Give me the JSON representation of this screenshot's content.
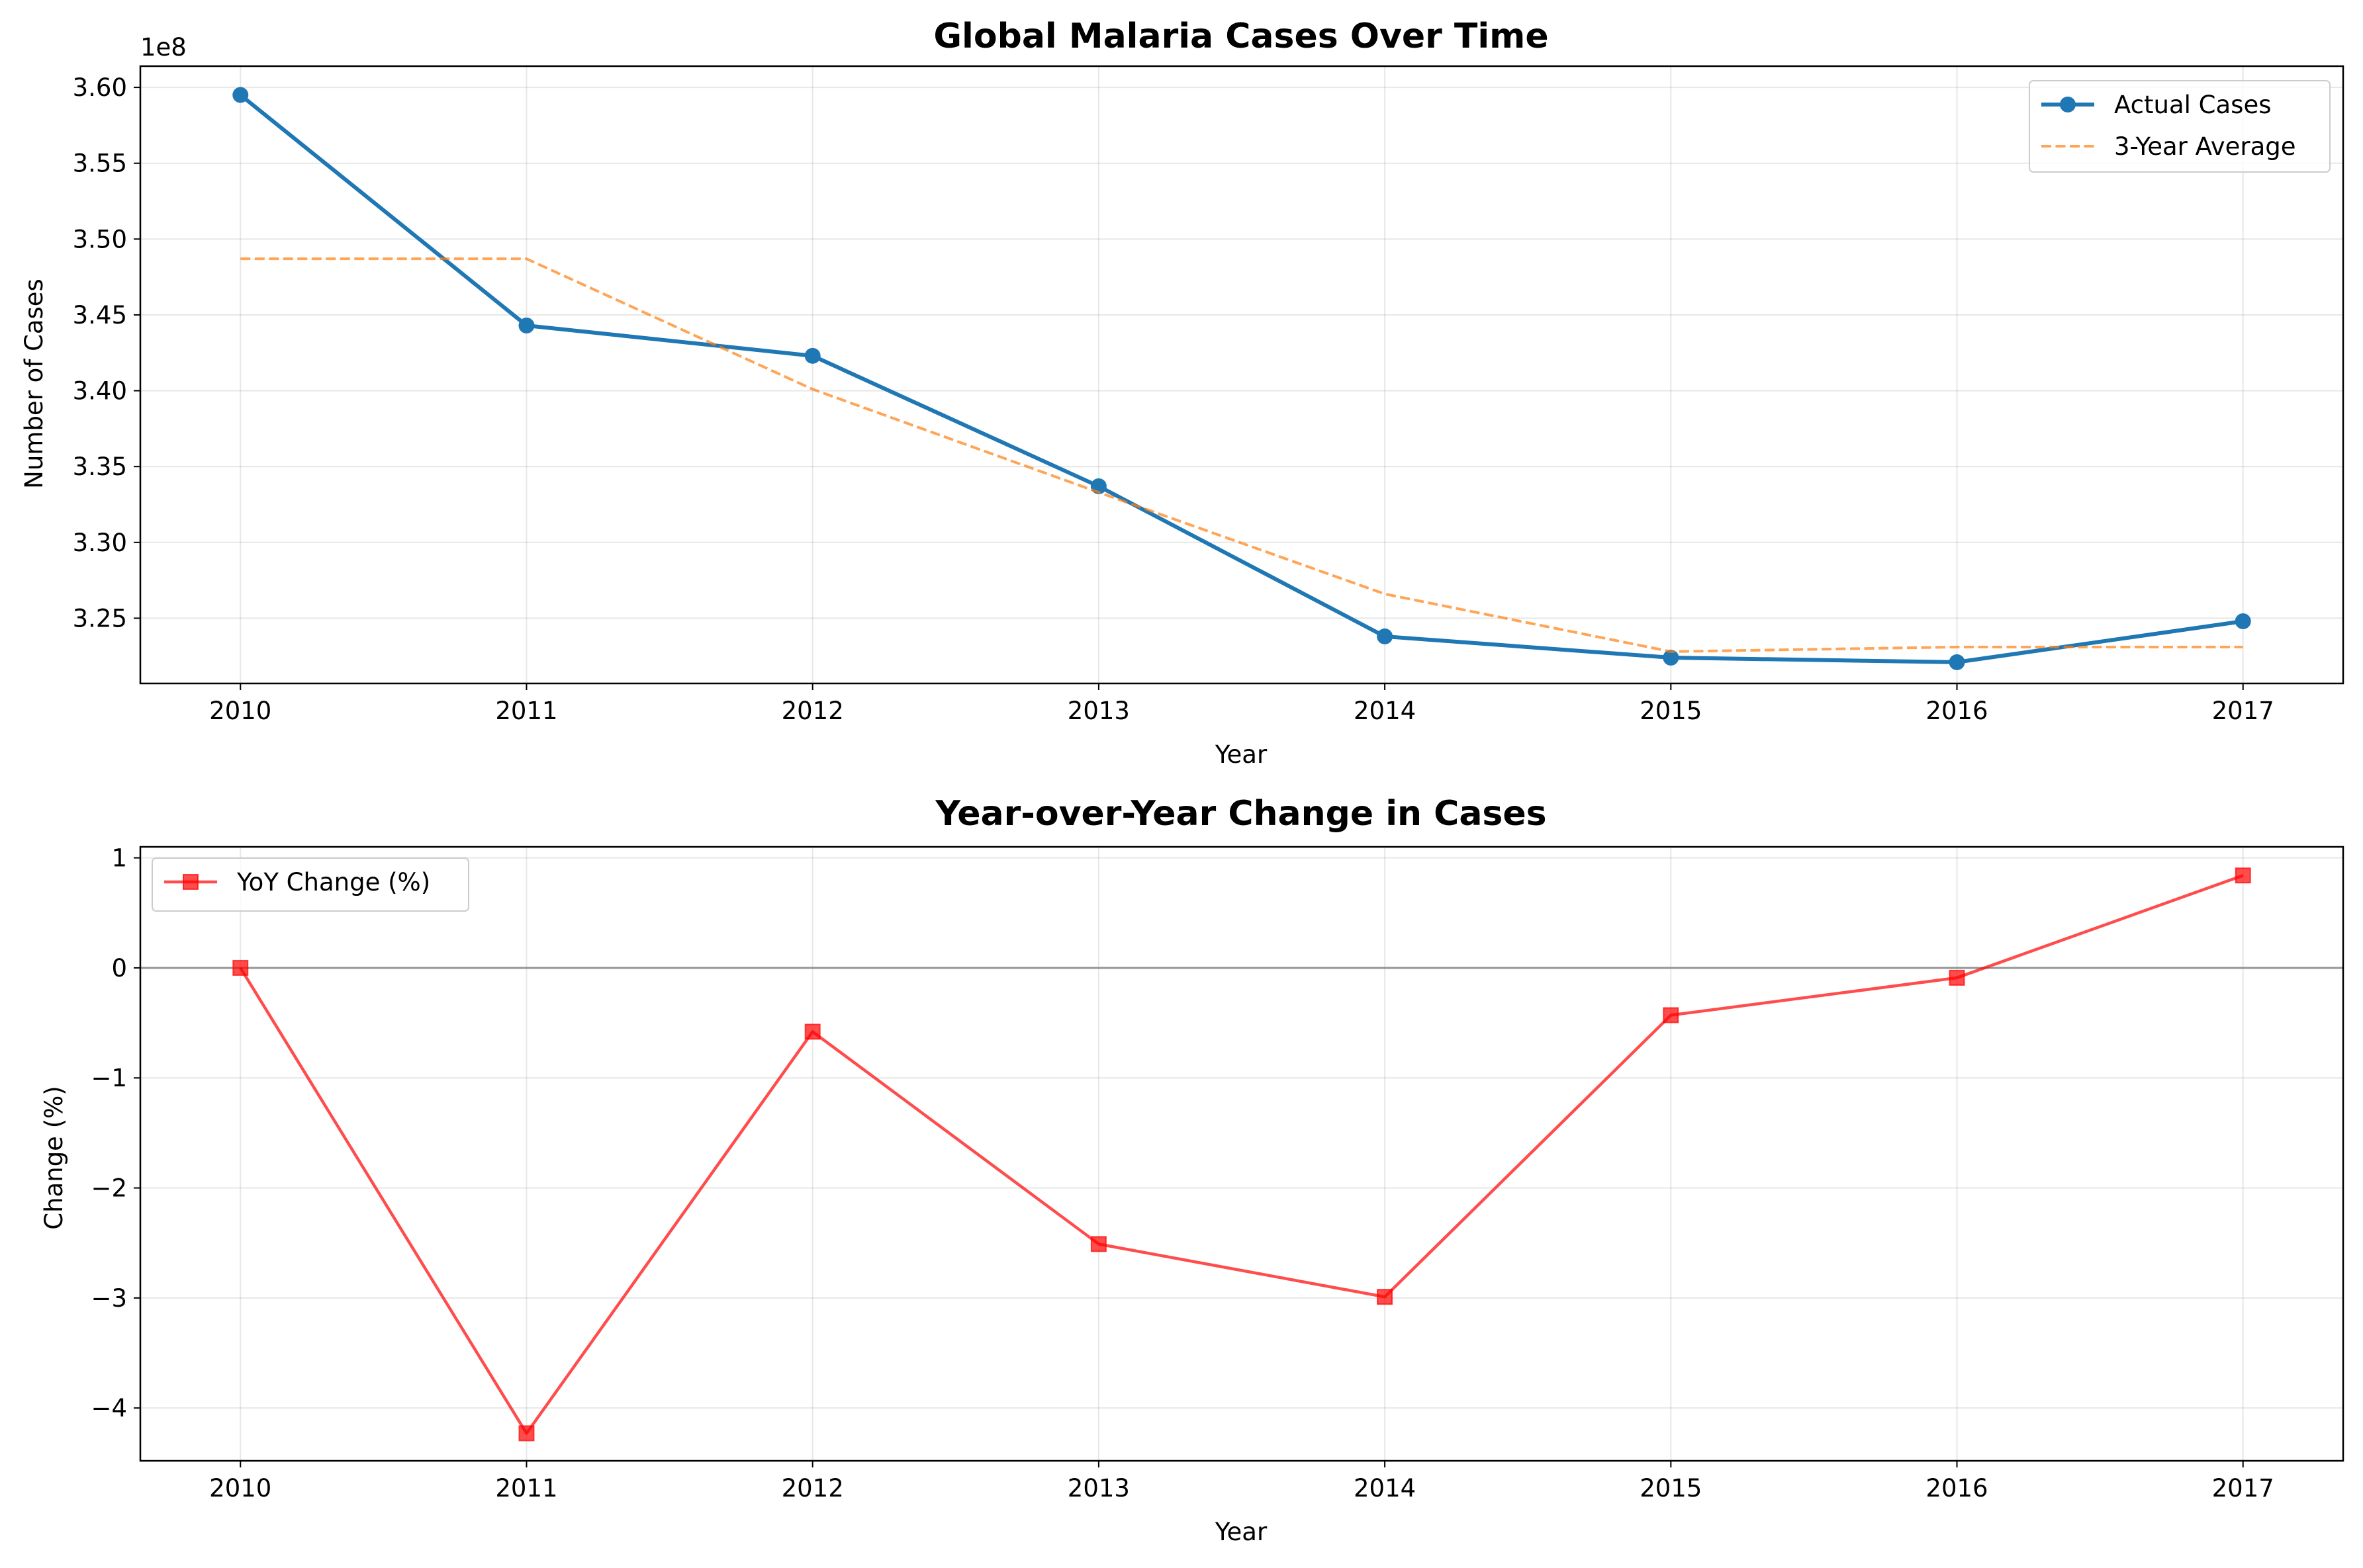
{
  "chart_data": [
    {
      "type": "line",
      "title": "Global Malaria Cases Over Time",
      "xlabel": "Year",
      "ylabel": "Number of Cases",
      "y_offset_label": "1e8",
      "x": [
        2010,
        2011,
        2012,
        2013,
        2014,
        2015,
        2016,
        2017
      ],
      "x_tick_labels": [
        "2010",
        "2011",
        "2012",
        "2013",
        "2014",
        "2015",
        "2016",
        "2017"
      ],
      "y_ticks": [
        3.25,
        3.3,
        3.35,
        3.4,
        3.45,
        3.5,
        3.55,
        3.6
      ],
      "y_tick_labels": [
        "3.25",
        "3.30",
        "3.35",
        "3.40",
        "3.45",
        "3.50",
        "3.55",
        "3.60"
      ],
      "xlim": [
        2009.65,
        2017.35
      ],
      "ylim": [
        3.207,
        3.614
      ],
      "grid": true,
      "legend_position": "upper right",
      "series": [
        {
          "name": "Actual Cases",
          "color": "#1f77b4",
          "line_style": "solid",
          "marker": "circle",
          "values": [
            3.595,
            3.443,
            3.423,
            3.337,
            3.238,
            3.224,
            3.221,
            3.248
          ]
        },
        {
          "name": "3-Year Average",
          "color": "#ff7f0e",
          "line_style": "dashed",
          "marker": "none",
          "values": [
            3.487,
            3.487,
            3.401,
            3.333,
            3.266,
            3.228,
            3.231,
            3.231
          ]
        }
      ]
    },
    {
      "type": "line",
      "title": "Year-over-Year Change in Cases",
      "xlabel": "Year",
      "ylabel": "Change (%)",
      "x": [
        2010,
        2011,
        2012,
        2013,
        2014,
        2015,
        2016,
        2017
      ],
      "x_tick_labels": [
        "2010",
        "2011",
        "2012",
        "2013",
        "2014",
        "2015",
        "2016",
        "2017"
      ],
      "y_ticks": [
        -4,
        -3,
        -2,
        -1,
        0,
        1
      ],
      "y_tick_labels": [
        "−4",
        "−3",
        "−2",
        "−1",
        "0",
        "1"
      ],
      "xlim": [
        2009.65,
        2017.35
      ],
      "ylim": [
        -4.48,
        1.1
      ],
      "grid": true,
      "reference_line": {
        "y": 0,
        "color": "#808080"
      },
      "legend_position": "upper left",
      "series": [
        {
          "name": "YoY Change (%)",
          "color": "#ff0000",
          "line_style": "solid",
          "marker": "square",
          "values": [
            0.0,
            -4.23,
            -0.58,
            -2.51,
            -2.99,
            -0.43,
            -0.09,
            0.84
          ]
        }
      ]
    }
  ]
}
